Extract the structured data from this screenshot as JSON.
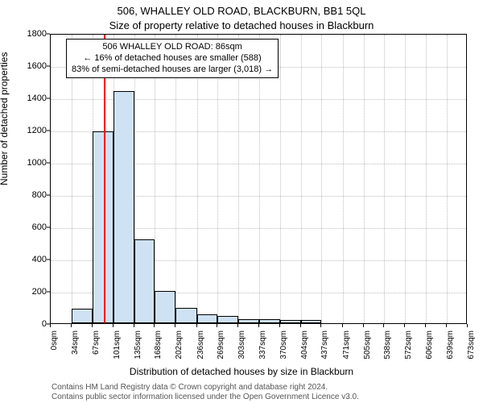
{
  "title_main": "506, WHALLEY OLD ROAD, BLACKBURN, BB1 5QL",
  "title_sub": "Size of property relative to detached houses in Blackburn",
  "y_axis_label": "Number of detached properties",
  "x_axis_label": "Distribution of detached houses by size in Blackburn",
  "attribution1": "Contains HM Land Registry data © Crown copyright and database right 2024.",
  "attribution2": "Contains public sector information licensed under the Open Government Licence v3.0.",
  "chart": {
    "type": "histogram",
    "background_color": "#ffffff",
    "grid_color": "#bfbfbf",
    "axis_color": "#000000",
    "bar_fill": "#cfe2f3",
    "bar_border": "#000000",
    "marker_color": "#ff0000",
    "marker_value": 86,
    "ylim": [
      0,
      1800
    ],
    "ytick_step": 200,
    "x_tick_values": [
      0,
      34,
      67,
      101,
      135,
      168,
      202,
      236,
      269,
      303,
      337,
      370,
      404,
      437,
      471,
      505,
      538,
      572,
      606,
      639,
      673
    ],
    "x_tick_unit": "sqm",
    "bars": [
      {
        "x0": 0,
        "x1": 34,
        "count": 0
      },
      {
        "x0": 34,
        "x1": 67,
        "count": 90
      },
      {
        "x0": 67,
        "x1": 101,
        "count": 1190
      },
      {
        "x0": 101,
        "x1": 135,
        "count": 1440
      },
      {
        "x0": 135,
        "x1": 168,
        "count": 520
      },
      {
        "x0": 168,
        "x1": 202,
        "count": 200
      },
      {
        "x0": 202,
        "x1": 236,
        "count": 95
      },
      {
        "x0": 236,
        "x1": 269,
        "count": 55
      },
      {
        "x0": 269,
        "x1": 303,
        "count": 45
      },
      {
        "x0": 303,
        "x1": 337,
        "count": 25
      },
      {
        "x0": 337,
        "x1": 370,
        "count": 25
      },
      {
        "x0": 370,
        "x1": 404,
        "count": 20
      },
      {
        "x0": 404,
        "x1": 437,
        "count": 20
      },
      {
        "x0": 437,
        "x1": 471,
        "count": 0
      },
      {
        "x0": 471,
        "x1": 505,
        "count": 0
      },
      {
        "x0": 505,
        "x1": 538,
        "count": 0
      },
      {
        "x0": 538,
        "x1": 572,
        "count": 0
      },
      {
        "x0": 572,
        "x1": 606,
        "count": 0
      },
      {
        "x0": 606,
        "x1": 639,
        "count": 0
      },
      {
        "x0": 639,
        "x1": 673,
        "count": 0
      }
    ],
    "title_fontsize": 13,
    "label_fontsize": 12,
    "tick_fontsize": 11
  },
  "annotation": {
    "line1": "506 WHALLEY OLD ROAD: 86sqm",
    "line2": "← 16% of detached houses are smaller (588)",
    "line3": "83% of semi-detached houses are larger (3,018) →",
    "border_color": "#000000",
    "background_color": "#ffffff",
    "fontsize": 11
  }
}
